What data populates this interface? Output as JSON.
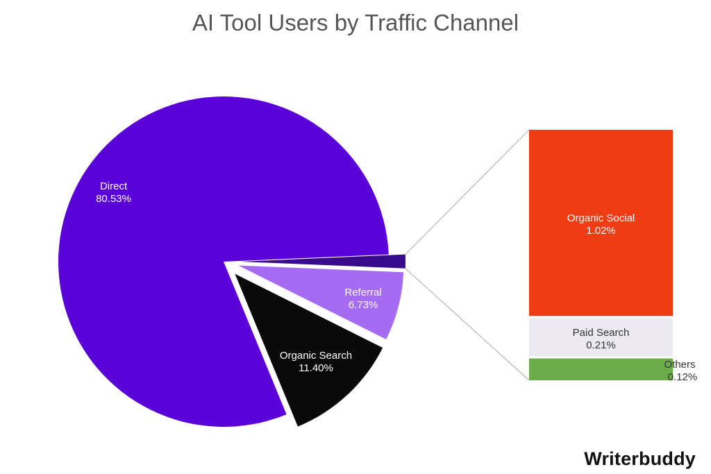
{
  "chart_data": {
    "type": "pie",
    "title": "AI Tool Users by Traffic Channel",
    "slices": [
      {
        "label": "Direct",
        "value": 80.53,
        "display": "80.53%",
        "color": "#5a04d9",
        "text_color": "#ffffff"
      },
      {
        "label": "Organic Search",
        "value": 11.4,
        "display": "11.40%",
        "color": "#0a0a0a",
        "text_color": "#ffffff"
      },
      {
        "label": "Referral",
        "value": 6.73,
        "display": "6.73%",
        "color": "#a56bf2",
        "text_color": "#ffffff"
      },
      {
        "label": "Others (grouped)",
        "value": 1.35,
        "display": "",
        "color": "#3a0a8c",
        "text_color": "#ffffff"
      }
    ],
    "breakdown": {
      "of": "Others (grouped)",
      "type": "stacked-bar",
      "segments": [
        {
          "label": "Organic Social",
          "value": 1.02,
          "display": "1.02%",
          "color": "#f03c14",
          "text_color": "#ffffff"
        },
        {
          "label": "Paid Search",
          "value": 0.21,
          "display": "0.21%",
          "color": "#eceaf0",
          "text_color": "#333333"
        },
        {
          "label": "Others",
          "value": 0.12,
          "display": "0.12%",
          "color": "#6aac48",
          "text_color": "#333333"
        }
      ]
    }
  },
  "logo_text": "Writerbuddy"
}
